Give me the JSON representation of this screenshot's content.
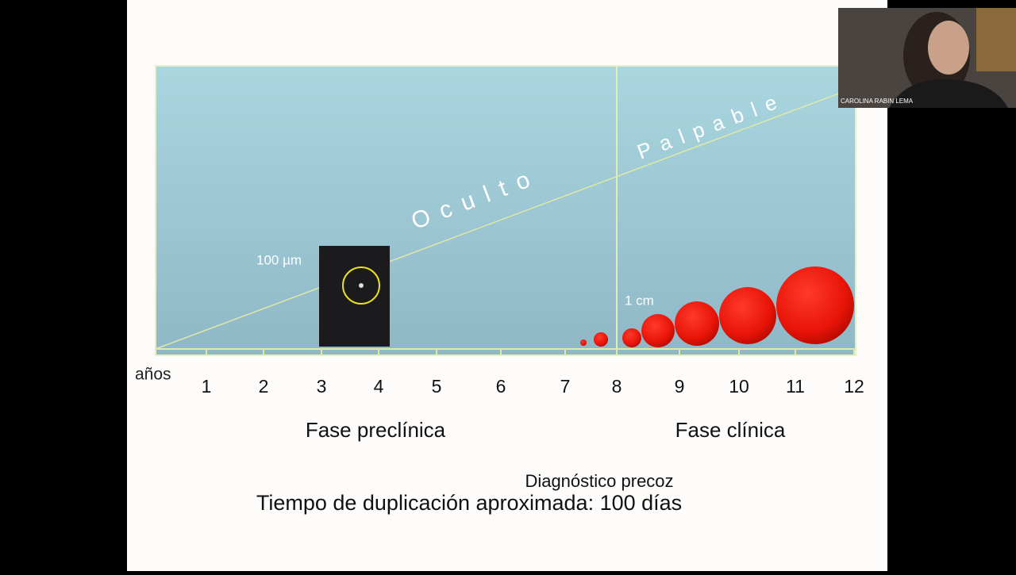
{
  "slide": {
    "phases": {
      "hidden": "Oculto",
      "palpable": "Palpable"
    },
    "scale_labels": {
      "micro": "100 µm",
      "centimeter": "1 cm"
    },
    "axis_label": "años",
    "years": [
      "1",
      "2",
      "3",
      "4",
      "5",
      "6",
      "7",
      "8",
      "9",
      "10",
      "11",
      "12"
    ],
    "phase_labels": {
      "preclinical": "Fase preclínica",
      "clinical": "Fase clínica"
    },
    "early_diagnosis": "Diagnóstico precoz",
    "doubling_time": "Tiempo de duplicación aproximada: 100 días"
  },
  "video": {
    "participant": "CAROLINA RABIN LEMA"
  }
}
